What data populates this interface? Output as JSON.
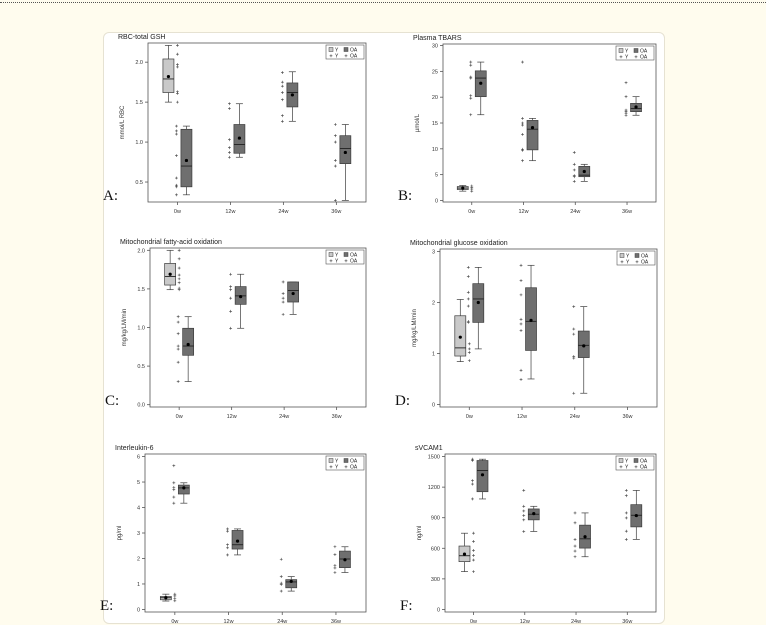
{
  "legend": {
    "box_y": "Y",
    "box_oa": "OA",
    "point_y": "Y",
    "point_oa": "OA"
  },
  "colors": {
    "y_box": "#c9c9c9",
    "oa_box": "#6f6f6f",
    "edge": "#3c3c3c",
    "background": "#fffcee"
  },
  "chart_data": [
    {
      "panel": "A:",
      "type": "box",
      "title": "RBC-total GSH",
      "xlabel": "",
      "ylabel": "mmol/L RBC",
      "categories": [
        "0w",
        "12w",
        "24w",
        "36w"
      ],
      "ylim": [
        0.25,
        2.24
      ],
      "yticks": [
        0.5,
        1.0,
        1.5,
        2.0
      ],
      "ytick_labels": [
        "0.5",
        "1.0",
        "1.5",
        "2.0"
      ],
      "boxes": [
        {
          "category": "0w",
          "group": "Y",
          "min": 1.5,
          "q1": 1.62,
          "median": 1.79,
          "q3": 2.04,
          "max": 2.21,
          "mean": 1.82,
          "points": [
            2.21,
            2.1,
            1.97,
            1.94,
            1.63,
            1.61,
            1.5
          ]
        },
        {
          "category": "0w",
          "group": "OA",
          "min": 0.34,
          "q1": 0.44,
          "median": 0.7,
          "q3": 1.16,
          "max": 1.2,
          "mean": 0.77,
          "points": [
            1.2,
            1.14,
            1.1,
            0.83,
            0.55,
            0.46,
            0.44,
            0.34
          ]
        },
        {
          "category": "12w",
          "group": "OA",
          "min": 0.81,
          "q1": 0.86,
          "median": 0.97,
          "q3": 1.22,
          "max": 1.48,
          "mean": 1.05,
          "points": [
            1.48,
            1.42,
            1.03,
            0.93,
            0.87,
            0.81
          ]
        },
        {
          "category": "24w",
          "group": "OA",
          "min": 1.26,
          "q1": 1.44,
          "median": 1.62,
          "q3": 1.74,
          "max": 1.88,
          "mean": 1.59,
          "points": [
            1.87,
            1.75,
            1.7,
            1.62,
            1.53,
            1.33,
            1.26
          ]
        },
        {
          "category": "36w",
          "group": "OA",
          "min": 0.27,
          "q1": 0.73,
          "median": 0.92,
          "q3": 1.08,
          "max": 1.22,
          "mean": 0.87,
          "points": [
            1.22,
            1.08,
            1.0,
            0.77,
            0.7,
            0.27
          ]
        }
      ]
    },
    {
      "panel": "B:",
      "type": "box",
      "title": "Plasma TBARS",
      "xlabel": "",
      "ylabel": "µmol/L",
      "categories": [
        "0w",
        "12w",
        "24w",
        "36w"
      ],
      "ylim": [
        -0.3,
        30.3
      ],
      "yticks": [
        0,
        5,
        10,
        15,
        20,
        25,
        30
      ],
      "ytick_labels": [
        "0",
        "5",
        "10",
        "15",
        "20",
        "25",
        "30"
      ],
      "boxes": [
        {
          "category": "0w",
          "group": "Y",
          "min": 1.8,
          "q1": 2.1,
          "median": 2.4,
          "q3": 2.7,
          "max": 2.9,
          "mean": 2.4,
          "points": [
            2.8,
            2.5,
            2.2,
            1.8
          ]
        },
        {
          "category": "0w",
          "group": "OA",
          "min": 16.6,
          "q1": 20.1,
          "median": 23.7,
          "q3": 25.1,
          "max": 26.8,
          "mean": 22.7,
          "points": [
            26.8,
            26.2,
            23.9,
            23.7,
            20.3,
            19.8,
            16.6
          ]
        },
        {
          "category": "12w",
          "group": "OA",
          "min": 7.7,
          "q1": 9.8,
          "median": 13.8,
          "q3": 15.5,
          "max": 15.9,
          "mean": 14.1,
          "points": [
            26.8,
            15.9,
            15.0,
            14.6,
            12.8,
            9.9,
            9.7,
            7.7
          ]
        },
        {
          "category": "24w",
          "group": "OA",
          "min": 3.7,
          "q1": 4.6,
          "median": 4.9,
          "q3": 6.6,
          "max": 7.0,
          "mean": 5.6,
          "points": [
            9.3,
            7.0,
            5.9,
            4.8,
            4.6,
            3.7
          ]
        },
        {
          "category": "36w",
          "group": "OA",
          "min": 16.5,
          "q1": 17.2,
          "median": 17.8,
          "q3": 18.8,
          "max": 20.1,
          "mean": 18.1,
          "points": [
            22.8,
            20.1,
            17.5,
            17.2,
            16.9,
            16.5
          ]
        }
      ]
    },
    {
      "panel": "C:",
      "type": "box",
      "title": "Mitochondrial fatty-acid oxidation",
      "xlabel": "",
      "ylabel": "mg/kg/LM/min",
      "categories": [
        "0w",
        "12w",
        "24w",
        "36w"
      ],
      "ylim": [
        -0.03,
        2.03
      ],
      "yticks": [
        0,
        0.5,
        1.0,
        1.5,
        2.0
      ],
      "ytick_labels": [
        "0.0",
        "0.5",
        "1.0",
        "1.5",
        "2.0"
      ],
      "boxes": [
        {
          "category": "0w",
          "group": "Y",
          "min": 1.49,
          "q1": 1.55,
          "median": 1.66,
          "q3": 1.83,
          "max": 2.0,
          "mean": 1.69,
          "points": [
            2.0,
            1.89,
            1.77,
            1.68,
            1.63,
            1.58,
            1.51,
            1.49
          ]
        },
        {
          "category": "0w",
          "group": "OA",
          "min": 0.3,
          "q1": 0.64,
          "median": 0.76,
          "q3": 0.99,
          "max": 1.14,
          "mean": 0.78,
          "points": [
            1.14,
            1.07,
            0.92,
            0.76,
            0.72,
            0.55,
            0.3
          ]
        },
        {
          "category": "12w",
          "group": "OA",
          "min": 0.99,
          "q1": 1.3,
          "median": 1.41,
          "q3": 1.53,
          "max": 1.69,
          "mean": 1.4,
          "points": [
            1.69,
            1.53,
            1.49,
            1.38,
            1.21,
            0.99
          ]
        },
        {
          "category": "24w",
          "group": "OA",
          "min": 1.17,
          "q1": 1.33,
          "median": 1.48,
          "q3": 1.59,
          "max": 1.59,
          "mean": 1.44,
          "points": [
            1.59,
            1.44,
            1.38,
            1.33,
            1.17
          ]
        }
      ]
    },
    {
      "panel": "D:",
      "type": "box",
      "title": "Mitochondrial glucose oxidation",
      "xlabel": "",
      "ylabel": "mg/kg/LM/min",
      "categories": [
        "0w",
        "12w",
        "24w",
        "36w"
      ],
      "ylim": [
        -0.05,
        3.05
      ],
      "yticks": [
        0,
        1,
        2,
        3
      ],
      "ytick_labels": [
        "0",
        "1",
        "2",
        "3"
      ],
      "boxes": [
        {
          "category": "0w",
          "group": "Y",
          "min": 0.84,
          "q1": 0.95,
          "median": 1.11,
          "q3": 1.74,
          "max": 2.06,
          "mean": 1.32,
          "points": [
            1.19,
            1.09,
            1.02,
            0.86
          ]
        },
        {
          "category": "0w",
          "group": "OA",
          "min": 1.09,
          "q1": 1.61,
          "median": 2.07,
          "q3": 2.37,
          "max": 2.69,
          "mean": 2.0,
          "points": [
            2.69,
            2.51,
            2.2,
            2.07,
            1.93,
            1.63,
            1.61
          ]
        },
        {
          "category": "12w",
          "group": "OA",
          "min": 0.5,
          "q1": 1.06,
          "median": 1.63,
          "q3": 2.29,
          "max": 2.73,
          "mean": 1.65,
          "points": [
            2.73,
            2.43,
            2.15,
            1.67,
            1.58,
            1.45,
            0.67,
            0.49
          ]
        },
        {
          "category": "24w",
          "group": "OA",
          "min": 0.22,
          "q1": 0.92,
          "median": 1.16,
          "q3": 1.44,
          "max": 1.92,
          "mean": 1.15,
          "points": [
            1.92,
            1.48,
            1.38,
            0.94,
            0.91,
            0.22
          ]
        }
      ]
    },
    {
      "panel": "E:",
      "type": "box",
      "title": "Interleukin-6",
      "xlabel": "",
      "ylabel": "pg/ml",
      "categories": [
        "0w",
        "12w",
        "24w",
        "36w"
      ],
      "ylim": [
        -0.1,
        6.1
      ],
      "yticks": [
        0,
        1,
        2,
        3,
        4,
        5,
        6
      ],
      "ytick_labels": [
        "0",
        "1",
        "2",
        "3",
        "4",
        "5",
        "6"
      ],
      "boxes": [
        {
          "category": "0w",
          "group": "Y",
          "min": 0.33,
          "q1": 0.38,
          "median": 0.46,
          "q3": 0.51,
          "max": 0.6,
          "mean": 0.46,
          "points": [
            0.6,
            0.53,
            0.43,
            0.34
          ]
        },
        {
          "category": "0w",
          "group": "OA",
          "min": 4.17,
          "q1": 4.53,
          "median": 4.77,
          "q3": 4.88,
          "max": 4.97,
          "mean": 4.77,
          "points": [
            5.64,
            4.97,
            4.79,
            4.7,
            4.41,
            4.17
          ]
        },
        {
          "category": "12w",
          "group": "OA",
          "min": 2.14,
          "q1": 2.37,
          "median": 2.54,
          "q3": 3.1,
          "max": 3.16,
          "mean": 2.68,
          "points": [
            3.16,
            3.07,
            2.54,
            2.42,
            2.14
          ]
        },
        {
          "category": "24w",
          "group": "OA",
          "min": 0.72,
          "q1": 0.85,
          "median": 1.08,
          "q3": 1.17,
          "max": 1.29,
          "mean": 1.1,
          "points": [
            1.97,
            1.29,
            1.03,
            0.98,
            0.72
          ]
        },
        {
          "category": "36w",
          "group": "OA",
          "min": 1.45,
          "q1": 1.64,
          "median": 1.98,
          "q3": 2.29,
          "max": 2.46,
          "mean": 1.95,
          "points": [
            2.46,
            2.15,
            1.73,
            1.63,
            1.45
          ]
        }
      ]
    },
    {
      "panel": "F:",
      "type": "box",
      "title": "sVCAM1",
      "xlabel": "",
      "ylabel": "ng/ml",
      "categories": [
        "0w",
        "12w",
        "24w",
        "36w"
      ],
      "ylim": [
        -25,
        1525
      ],
      "yticks": [
        0,
        300,
        600,
        900,
        1200,
        1500
      ],
      "ytick_labels": [
        "0",
        "300",
        "600",
        "900",
        "1200",
        "1500"
      ],
      "boxes": [
        {
          "category": "0w",
          "group": "Y",
          "min": 371,
          "q1": 469,
          "median": 527,
          "q3": 622,
          "max": 748,
          "mean": 543,
          "points": [
            748,
            667,
            579,
            530,
            485,
            371
          ]
        },
        {
          "category": "0w",
          "group": "OA",
          "min": 1084,
          "q1": 1155,
          "median": 1363,
          "q3": 1461,
          "max": 1474,
          "mean": 1321,
          "points": [
            1474,
            1461,
            1263,
            1230,
            1084
          ]
        },
        {
          "category": "12w",
          "group": "OA",
          "min": 765,
          "q1": 879,
          "median": 934,
          "q3": 986,
          "max": 1012,
          "mean": 940,
          "points": [
            1168,
            1012,
            966,
            921,
            879,
            765
          ]
        },
        {
          "category": "24w",
          "group": "OA",
          "min": 517,
          "q1": 602,
          "median": 693,
          "q3": 827,
          "max": 947,
          "mean": 713,
          "points": [
            947,
            850,
            687,
            622,
            573,
            517
          ]
        },
        {
          "category": "36w",
          "group": "OA",
          "min": 687,
          "q1": 810,
          "median": 924,
          "q3": 1028,
          "max": 1168,
          "mean": 921,
          "points": [
            1168,
            1116,
            947,
            898,
            768,
            687
          ]
        }
      ]
    }
  ]
}
